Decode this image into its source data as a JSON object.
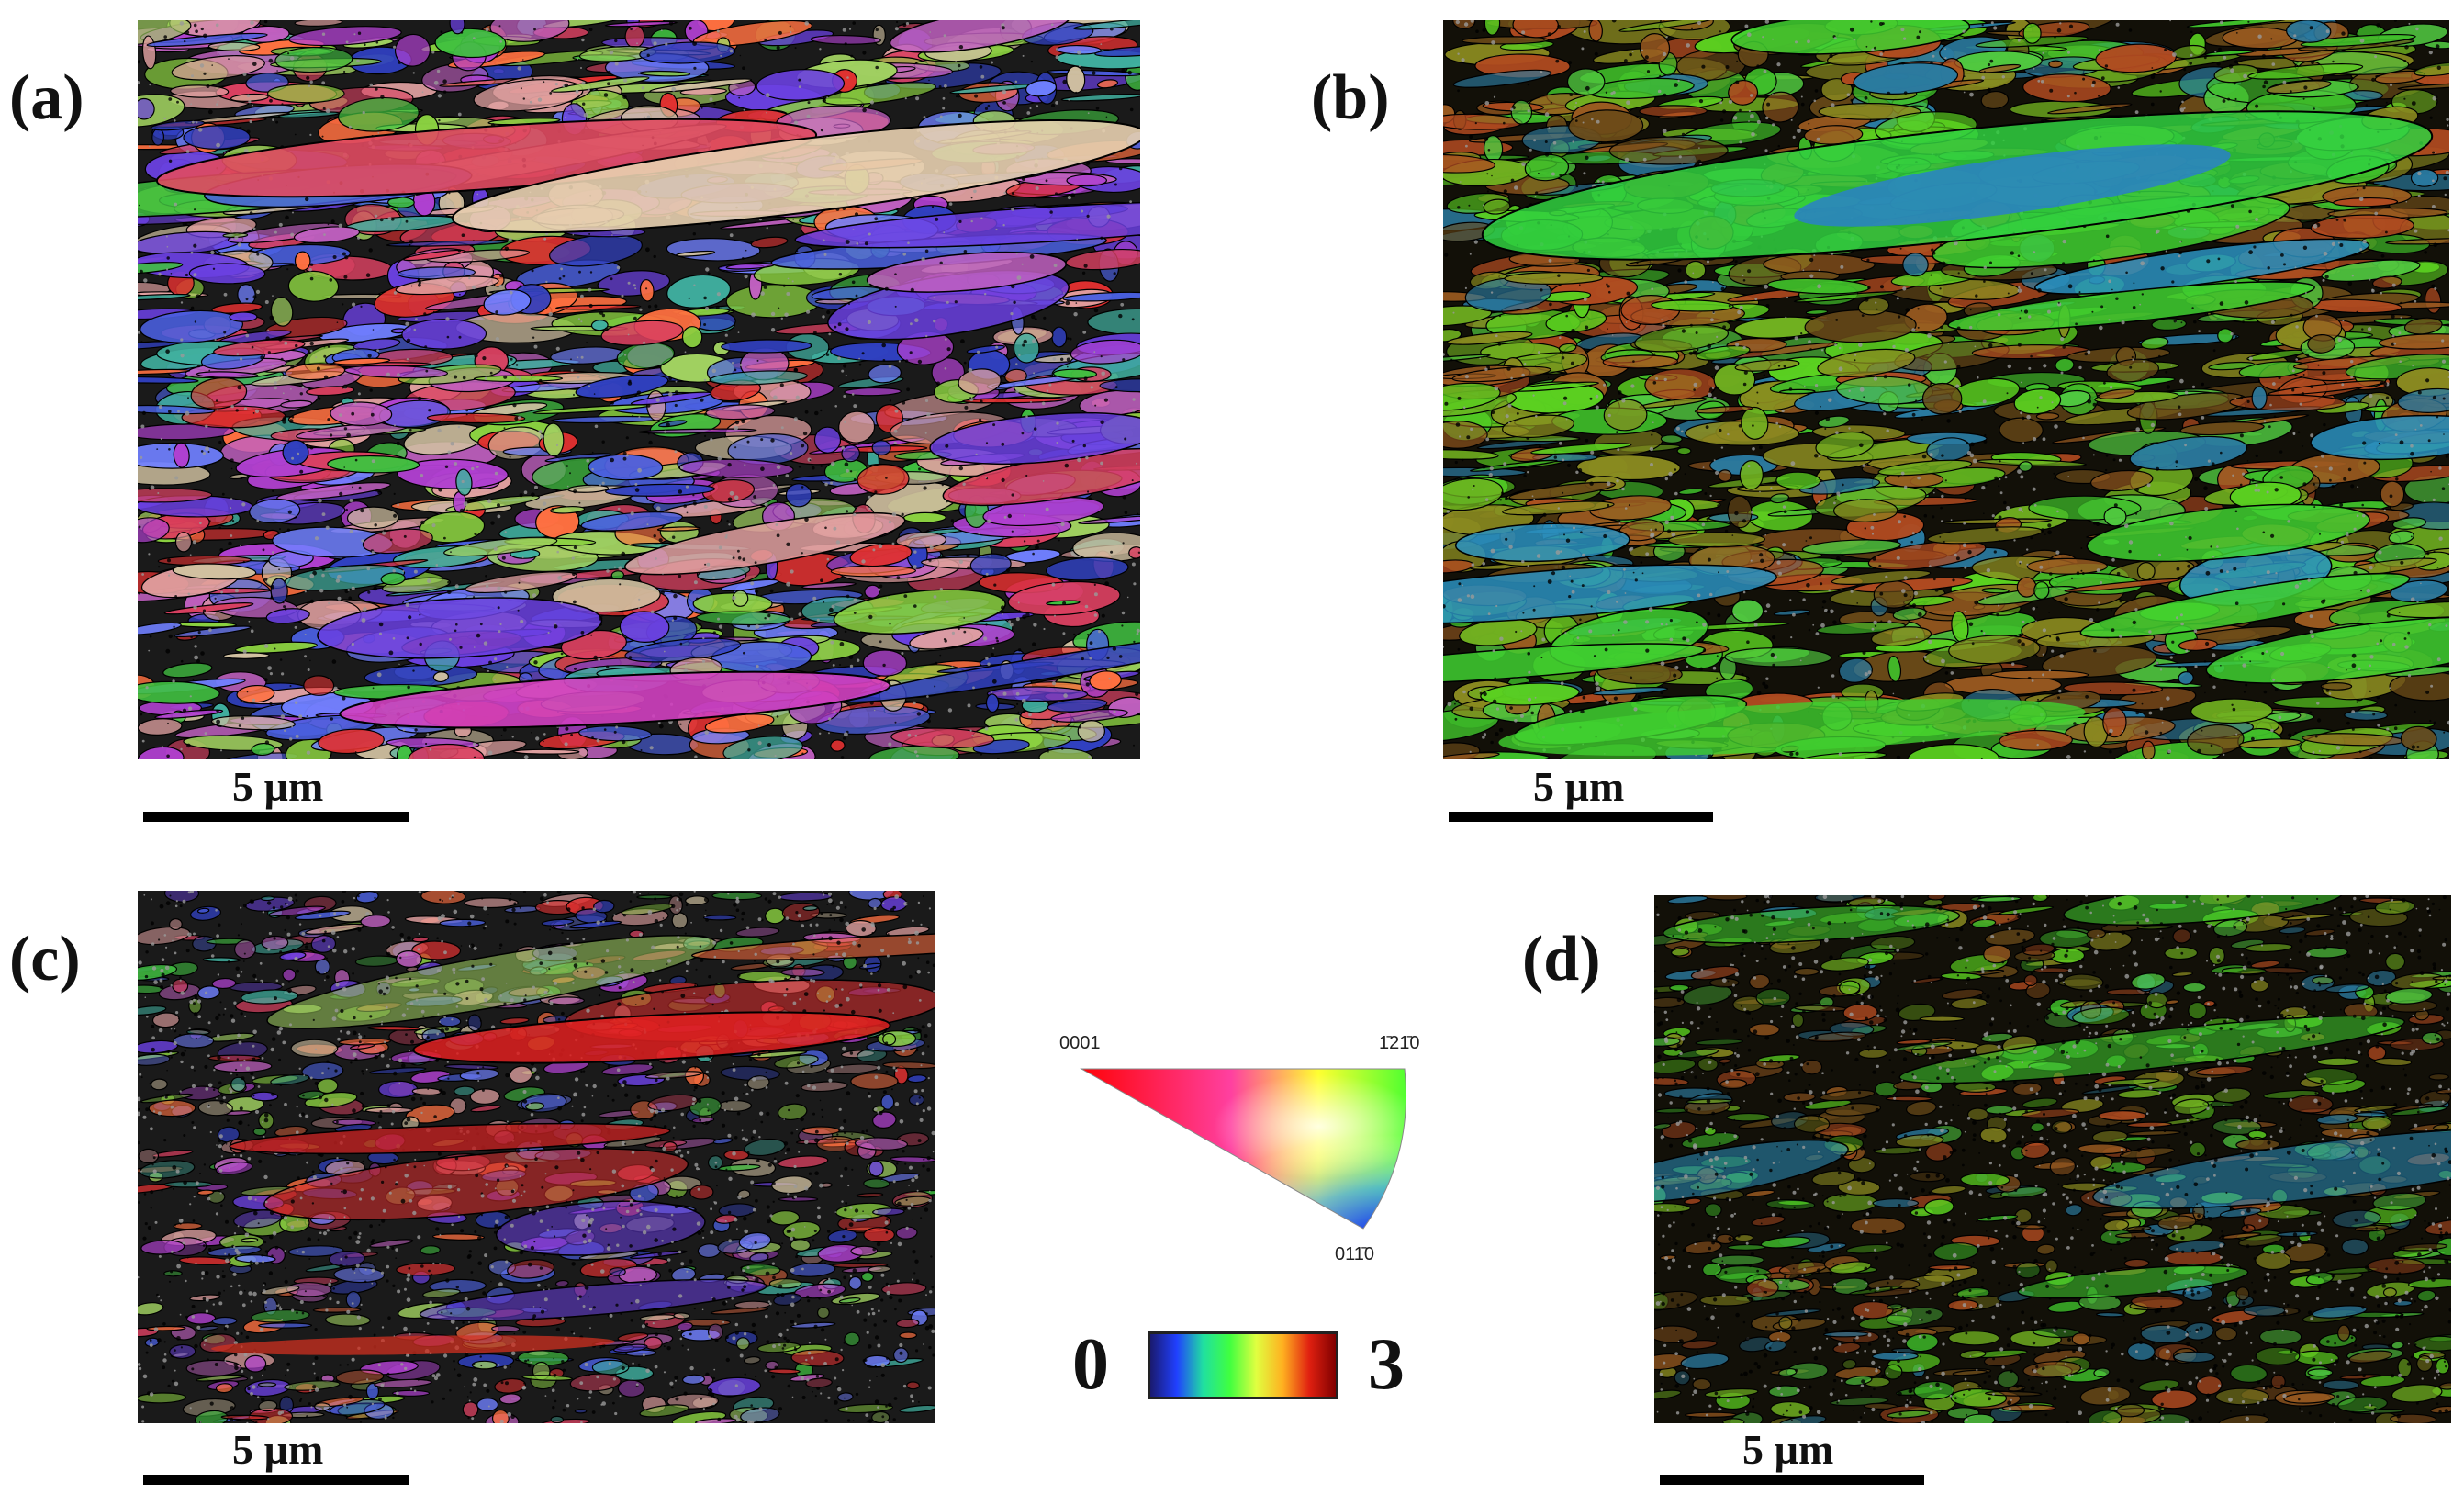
{
  "panels": [
    {
      "label": "(a)",
      "map_type": "ipf",
      "scale": "5 µm"
    },
    {
      "label": "(b)",
      "map_type": "kam",
      "scale": "5 µm"
    },
    {
      "label": "(c)",
      "map_type": "ipf",
      "scale": "5 µm"
    },
    {
      "label": "(d)",
      "map_type": "kam",
      "scale": "5 µm"
    }
  ],
  "ipf_key": {
    "corner_0001": "0001",
    "corner_m12m10": "1̄21̄0",
    "corner_01m10": "011̄0",
    "colors": [
      "#ff0000",
      "#00ff00",
      "#0000ff"
    ]
  },
  "colorbar": {
    "min_label": "0",
    "max_label": "3",
    "colors": [
      "#1a1a6e",
      "#2040ff",
      "#20e0a0",
      "#40ff40",
      "#e0ff40",
      "#ffb020",
      "#e02010",
      "#800000"
    ]
  }
}
